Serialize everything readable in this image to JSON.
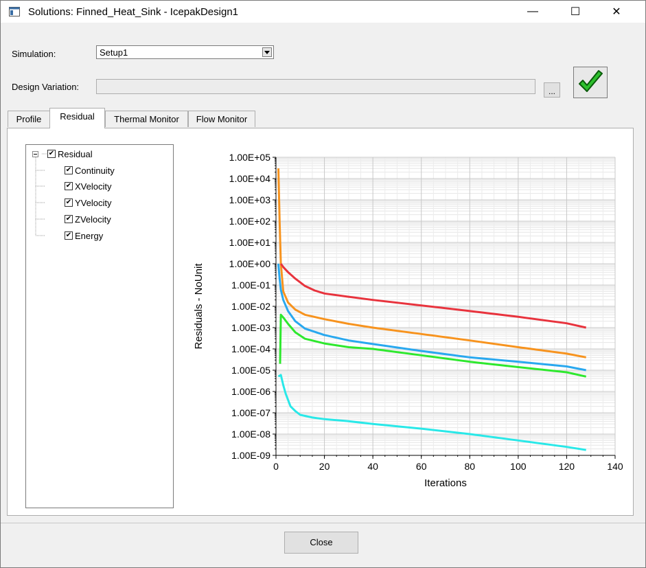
{
  "window": {
    "title": "Solutions: Finned_Heat_Sink - IcepakDesign1",
    "minimize_glyph": "—",
    "maximize_glyph": "☐",
    "close_glyph": "✕"
  },
  "simulation": {
    "label": "Simulation:",
    "value": "Setup1"
  },
  "design_variation": {
    "label": "Design Variation:",
    "value": "",
    "browse_label": "..."
  },
  "tabs": [
    {
      "label": "Profile",
      "active": false
    },
    {
      "label": "Residual",
      "active": true
    },
    {
      "label": "Thermal Monitor",
      "active": false
    },
    {
      "label": "Flow Monitor",
      "active": false
    }
  ],
  "tree": {
    "root": {
      "label": "Residual",
      "checked": true
    },
    "items": [
      {
        "label": "Continuity",
        "checked": true
      },
      {
        "label": "XVelocity",
        "checked": true
      },
      {
        "label": "YVelocity",
        "checked": true
      },
      {
        "label": "ZVelocity",
        "checked": true
      },
      {
        "label": "Energy",
        "checked": true
      }
    ]
  },
  "footer": {
    "close_label": "Close"
  },
  "colors": {
    "continuity": "#e8333d",
    "xvelocity": "#f7931e",
    "yvelocity": "#29a8ef",
    "zvelocity": "#2ee82e",
    "energy": "#29e8e8",
    "check": "#2dbf2d"
  },
  "chart_data": {
    "type": "line",
    "title": "",
    "xlabel": "Iterations",
    "ylabel": "Residuals - NoUnit",
    "xlim": [
      0,
      140
    ],
    "ylim": [
      1e-09,
      100000.0
    ],
    "yscale": "log",
    "grid": true,
    "legend": "none",
    "x_ticks": [
      "0",
      "20",
      "40",
      "60",
      "80",
      "100",
      "120",
      "140"
    ],
    "y_ticks": [
      "1.00E+05",
      "1.00E+04",
      "1.00E+03",
      "1.00E+02",
      "1.00E+01",
      "1.00E+00",
      "1.00E-01",
      "1.00E-02",
      "1.00E-03",
      "1.00E-04",
      "1.00E-05",
      "1.00E-06",
      "1.00E-07",
      "1.00E-08",
      "1.00E-09"
    ],
    "series": [
      {
        "color": "#f7931e",
        "x": [
          1,
          1.5,
          2,
          3,
          5,
          8,
          12,
          20,
          30,
          40,
          60,
          80,
          100,
          120,
          128
        ],
        "y": [
          30000,
          100,
          1,
          0.05,
          0.015,
          0.007,
          0.004,
          0.0025,
          0.0015,
          0.001,
          0.0005,
          0.00025,
          0.00012,
          6e-05,
          4e-05
        ]
      },
      {
        "color": "#e8333d",
        "x": [
          2,
          3,
          5,
          8,
          12,
          16,
          20,
          30,
          40,
          60,
          80,
          100,
          120,
          128
        ],
        "y": [
          1,
          0.7,
          0.4,
          0.2,
          0.09,
          0.055,
          0.04,
          0.028,
          0.02,
          0.011,
          0.006,
          0.0032,
          0.0016,
          0.001
        ]
      },
      {
        "color": "#29a8ef",
        "x": [
          1,
          1.5,
          2,
          3,
          5,
          8,
          12,
          20,
          30,
          40,
          60,
          80,
          100,
          120,
          128
        ],
        "y": [
          1,
          0.2,
          0.06,
          0.02,
          0.006,
          0.002,
          0.0009,
          0.00045,
          0.00025,
          0.00017,
          8e-05,
          4e-05,
          2.5e-05,
          1.5e-05,
          1e-05
        ]
      },
      {
        "color": "#2ee82e",
        "x": [
          1.7,
          2,
          3,
          5,
          8,
          12,
          20,
          30,
          40,
          60,
          80,
          100,
          120,
          128
        ],
        "y": [
          2e-05,
          0.004,
          0.003,
          0.0015,
          0.0006,
          0.0003,
          0.00018,
          0.00012,
          0.0001,
          5e-05,
          2.5e-05,
          1.4e-05,
          8e-06,
          5e-06
        ]
      },
      {
        "color": "#29e8e8",
        "x": [
          1,
          2,
          3,
          4,
          5,
          6,
          8,
          10,
          15,
          20,
          30,
          40,
          60,
          80,
          100,
          120,
          128
        ],
        "y": [
          5e-06,
          6e-06,
          2e-06,
          8e-07,
          4e-07,
          2e-07,
          1.2e-07,
          8e-08,
          6e-08,
          5e-08,
          4e-08,
          3e-08,
          1.8e-08,
          1e-08,
          5e-09,
          2.5e-09,
          1.8e-09
        ]
      }
    ]
  }
}
